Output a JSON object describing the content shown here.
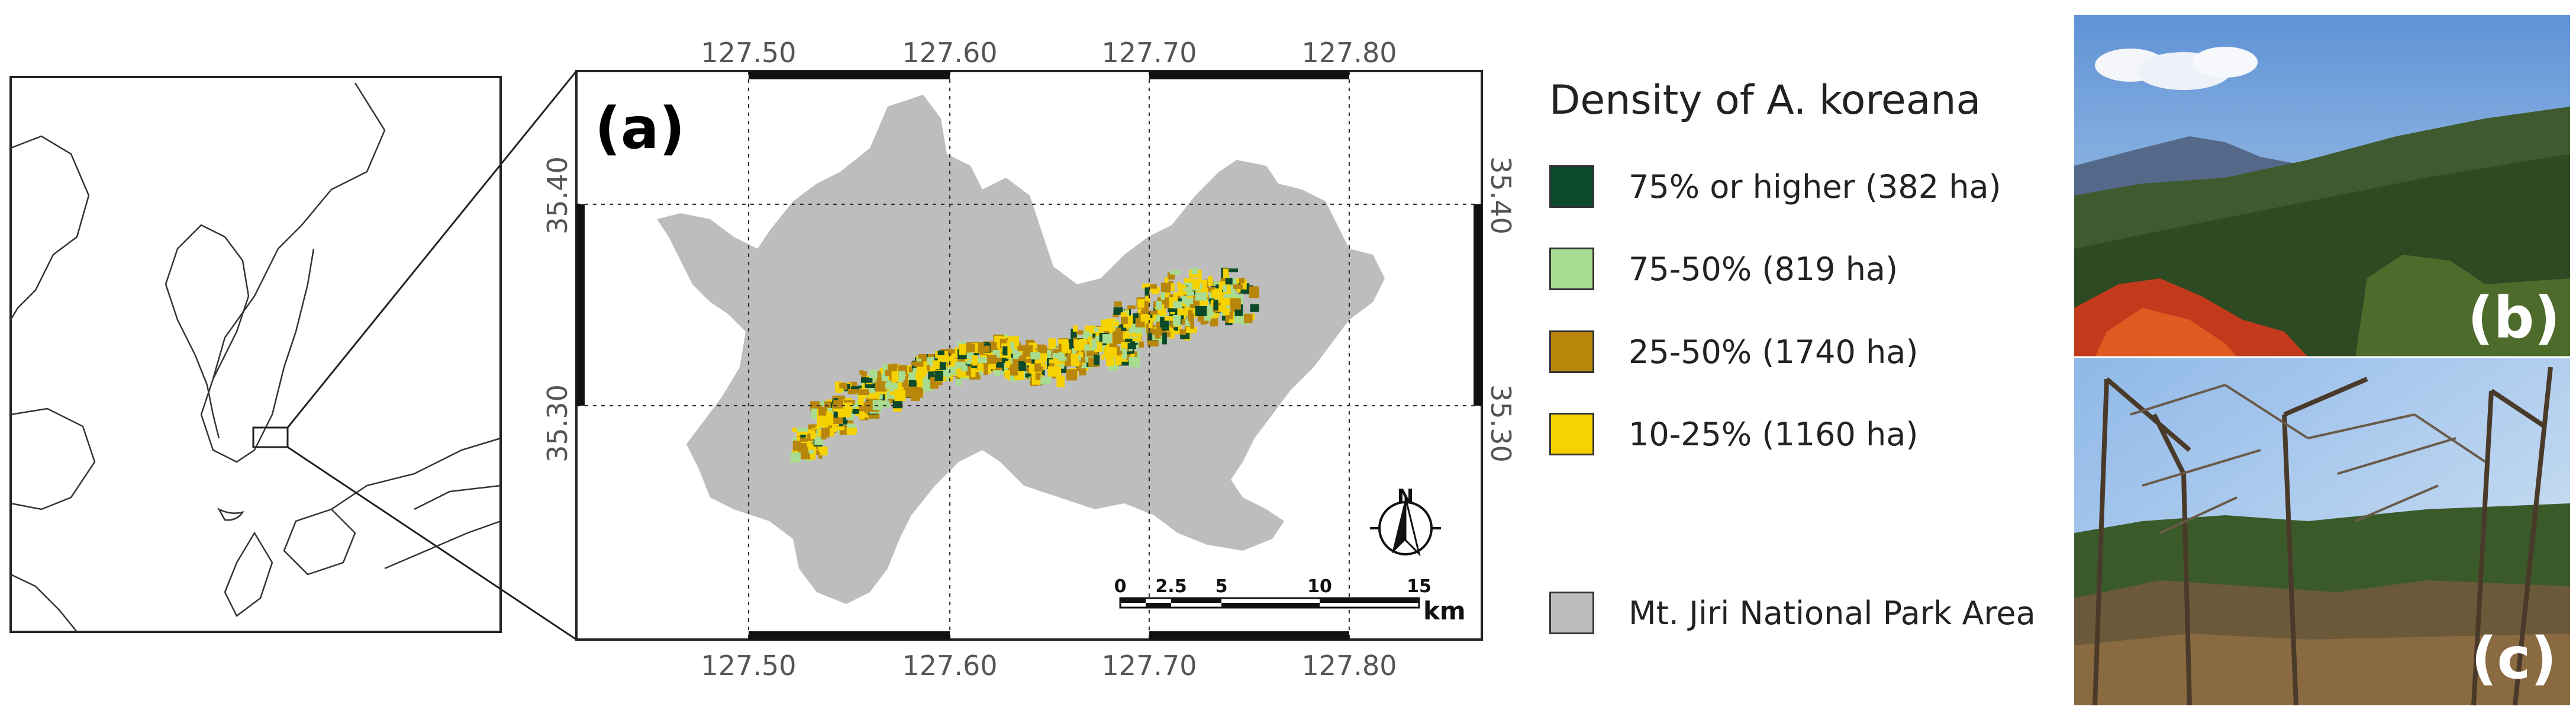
{
  "panel_a": {
    "label": "(a)",
    "top_ticks": [
      "127.50",
      "127.60",
      "127.70",
      "127.80"
    ],
    "bottom_ticks": [
      "127.50",
      "127.60",
      "127.70",
      "127.80"
    ],
    "left_ticks": [
      "35.40",
      "35.30"
    ],
    "right_ticks": [
      "35.40",
      "35.30"
    ],
    "north_label": "N",
    "scalebar": {
      "ticks": [
        "0",
        "2.5",
        "5",
        "10",
        "15"
      ],
      "unit": "km"
    }
  },
  "legend": {
    "title": "Density of A. koreana",
    "items": [
      {
        "label": "75% or higher (382 ha)",
        "color": "#0b4a2a"
      },
      {
        "label": "75-50% (819 ha)",
        "color": "#a8dc90"
      },
      {
        "label": "25-50% (1740 ha)",
        "color": "#b8860b"
      },
      {
        "label": "10-25% (1160 ha)",
        "color": "#f5d200"
      }
    ],
    "park": {
      "label": "Mt. Jiri National Park Area",
      "color": "#bdbdbd"
    }
  },
  "photos": {
    "b_label": "(b)",
    "c_label": "(c)"
  }
}
